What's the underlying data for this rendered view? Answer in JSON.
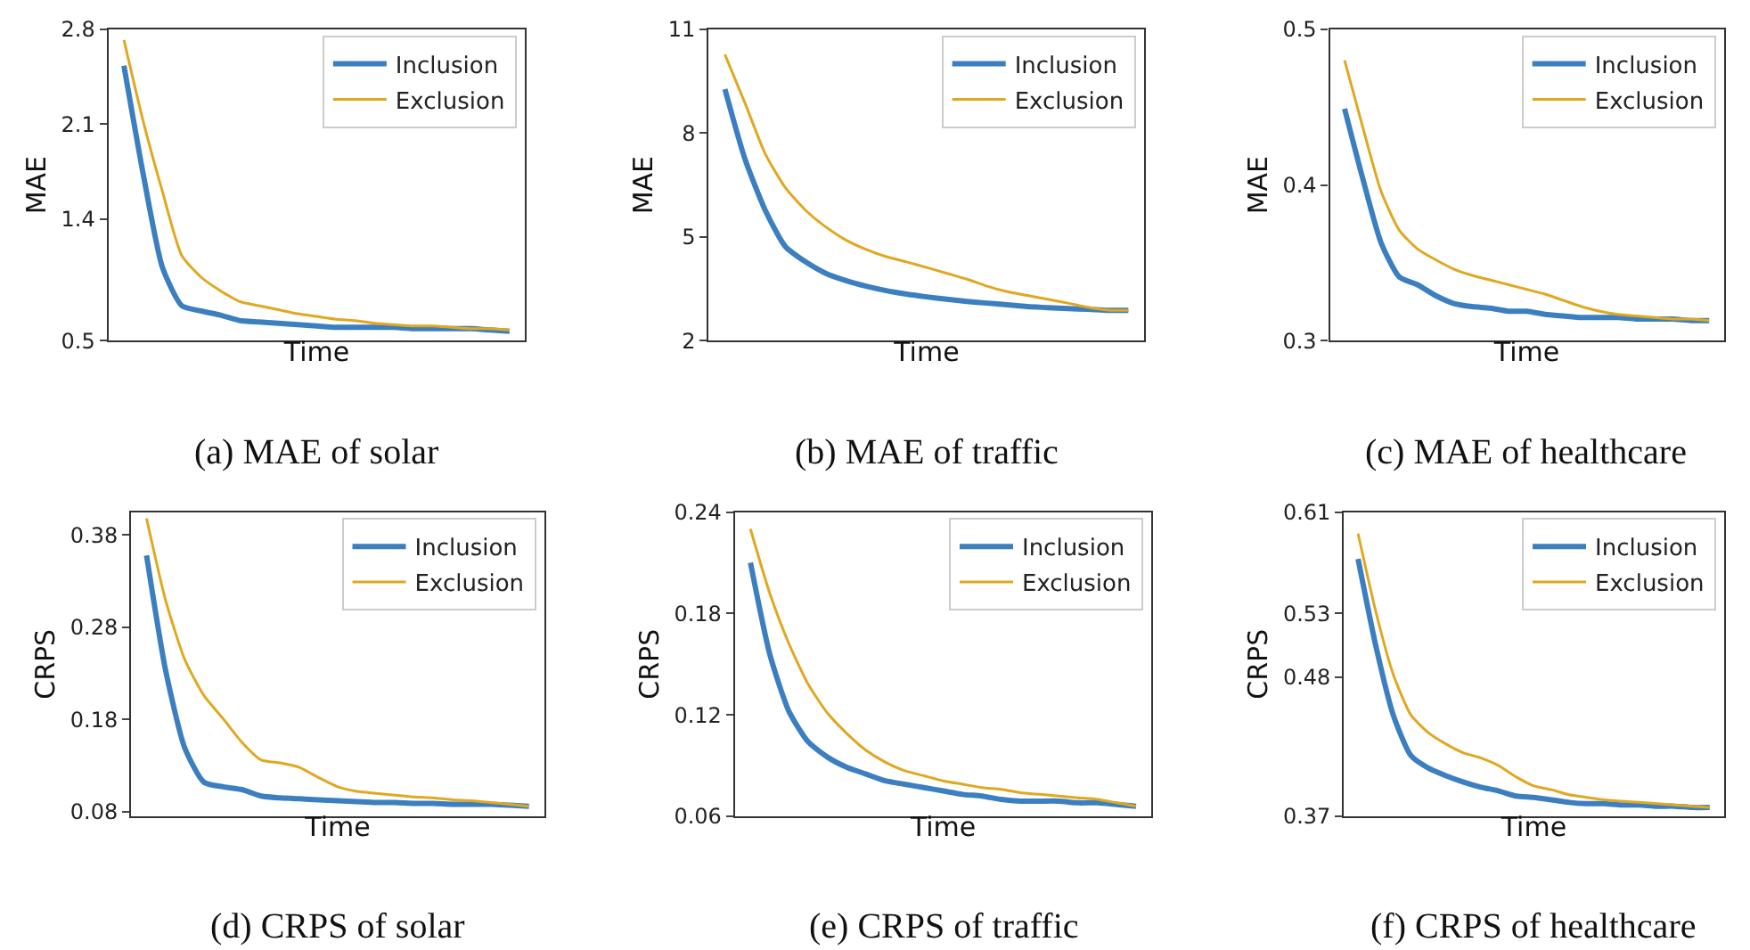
{
  "chart_data": [
    {
      "type": "line",
      "title": "(a) MAE of solar",
      "xlabel": "Time",
      "ylabel": "MAE",
      "categories": [
        null,
        null,
        null,
        null,
        null,
        null,
        null,
        null,
        null,
        null,
        null,
        null,
        null,
        null,
        null,
        null,
        null,
        null,
        null,
        null,
        null
      ],
      "ylim": [
        0.5,
        2.8
      ],
      "yticks": [
        0.5,
        1.4,
        2.1,
        2.8
      ],
      "tick_labels": "y",
      "legend": "top right",
      "series": [
        {
          "name": "Inclusion",
          "color": "#3b7fc0",
          "values": [
            2.53,
            1.73,
            1.04,
            0.76,
            0.72,
            0.69,
            0.65,
            0.64,
            0.63,
            0.62,
            0.61,
            0.6,
            0.6,
            0.6,
            0.6,
            0.59,
            0.59,
            0.59,
            0.59,
            0.58,
            0.57
          ]
        },
        {
          "name": "Exclusion",
          "color": "#e0a820",
          "values": [
            2.72,
            2.12,
            1.6,
            1.13,
            0.97,
            0.87,
            0.79,
            0.76,
            0.73,
            0.7,
            0.68,
            0.66,
            0.65,
            0.63,
            0.62,
            0.61,
            0.61,
            0.6,
            0.59,
            0.59,
            0.58
          ]
        }
      ]
    },
    {
      "type": "line",
      "title": "(b) MAE of traffic",
      "xlabel": "Time",
      "ylabel": "MAE",
      "categories": [
        null,
        null,
        null,
        null,
        null,
        null,
        null,
        null,
        null,
        null,
        null,
        null,
        null,
        null,
        null,
        null,
        null,
        null,
        null,
        null,
        null
      ],
      "ylim": [
        2,
        11
      ],
      "yticks": [
        2,
        5,
        8,
        11
      ],
      "tick_labels": "y",
      "legend": "top right",
      "series": [
        {
          "name": "Inclusion",
          "color": "#3b7fc0",
          "values": [
            9.27,
            7.24,
            5.77,
            4.72,
            4.28,
            3.95,
            3.74,
            3.58,
            3.45,
            3.35,
            3.27,
            3.2,
            3.14,
            3.09,
            3.04,
            2.99,
            2.96,
            2.93,
            2.91,
            2.88,
            2.88
          ]
        },
        {
          "name": "Exclusion",
          "color": "#e0a820",
          "values": [
            10.27,
            8.86,
            7.4,
            6.42,
            5.77,
            5.29,
            4.91,
            4.64,
            4.43,
            4.28,
            4.12,
            3.95,
            3.78,
            3.58,
            3.42,
            3.31,
            3.2,
            3.09,
            2.97,
            2.89,
            2.88
          ]
        }
      ]
    },
    {
      "type": "line",
      "title": "(c) MAE of healthcare",
      "xlabel": "Time",
      "ylabel": "MAE",
      "categories": [
        null,
        null,
        null,
        null,
        null,
        null,
        null,
        null,
        null,
        null,
        null,
        null,
        null,
        null,
        null,
        null,
        null,
        null,
        null,
        null,
        null
      ],
      "ylim": [
        0.3,
        0.5
      ],
      "yticks": [
        0.3,
        0.4,
        0.5
      ],
      "tick_labels": "y",
      "legend": "top right",
      "series": [
        {
          "name": "Inclusion",
          "color": "#3b7fc0",
          "values": [
            0.449,
            0.404,
            0.363,
            0.341,
            0.336,
            0.329,
            0.324,
            0.322,
            0.321,
            0.319,
            0.319,
            0.317,
            0.316,
            0.315,
            0.315,
            0.315,
            0.314,
            0.314,
            0.314,
            0.313,
            0.313
          ]
        },
        {
          "name": "Exclusion",
          "color": "#e0a820",
          "values": [
            0.48,
            0.437,
            0.396,
            0.371,
            0.359,
            0.352,
            0.346,
            0.342,
            0.339,
            0.336,
            0.333,
            0.33,
            0.326,
            0.322,
            0.319,
            0.317,
            0.316,
            0.315,
            0.314,
            0.314,
            0.313
          ]
        }
      ]
    },
    {
      "type": "line",
      "title": "(d) CRPS of solar",
      "xlabel": "Time",
      "ylabel": "CRPS",
      "categories": [
        null,
        null,
        null,
        null,
        null,
        null,
        null,
        null,
        null,
        null,
        null,
        null,
        null,
        null,
        null,
        null,
        null,
        null,
        null,
        null,
        null
      ],
      "ylim": [
        0.075,
        0.405
      ],
      "yticks": [
        0.08,
        0.18,
        0.28,
        0.38
      ],
      "tick_labels": "y",
      "legend": "top right",
      "series": [
        {
          "name": "Inclusion",
          "color": "#3b7fc0",
          "values": [
            0.358,
            0.233,
            0.149,
            0.112,
            0.107,
            0.104,
            0.097,
            0.095,
            0.094,
            0.093,
            0.092,
            0.091,
            0.09,
            0.09,
            0.089,
            0.089,
            0.088,
            0.088,
            0.088,
            0.087,
            0.086
          ]
        },
        {
          "name": "Exclusion",
          "color": "#e0a820",
          "values": [
            0.398,
            0.309,
            0.245,
            0.206,
            0.181,
            0.155,
            0.136,
            0.133,
            0.128,
            0.117,
            0.107,
            0.102,
            0.1,
            0.098,
            0.096,
            0.095,
            0.093,
            0.092,
            0.09,
            0.088,
            0.086
          ]
        }
      ]
    },
    {
      "type": "line",
      "title": "(e) CRPS of traffic",
      "xlabel": "Time",
      "ylabel": "CRPS",
      "categories": [
        null,
        null,
        null,
        null,
        null,
        null,
        null,
        null,
        null,
        null,
        null,
        null,
        null,
        null,
        null,
        null,
        null,
        null,
        null,
        null,
        null
      ],
      "ylim": [
        0.06,
        0.24
      ],
      "yticks": [
        0.06,
        0.12,
        0.18,
        0.24
      ],
      "tick_labels": "y",
      "legend": "top right",
      "series": [
        {
          "name": "Inclusion",
          "color": "#3b7fc0",
          "values": [
            0.21,
            0.156,
            0.122,
            0.104,
            0.095,
            0.089,
            0.085,
            0.081,
            0.079,
            0.077,
            0.075,
            0.073,
            0.072,
            0.07,
            0.069,
            0.069,
            0.069,
            0.068,
            0.068,
            0.067,
            0.066
          ]
        },
        {
          "name": "Exclusion",
          "color": "#e0a820",
          "values": [
            0.23,
            0.192,
            0.162,
            0.138,
            0.121,
            0.109,
            0.099,
            0.092,
            0.087,
            0.084,
            0.081,
            0.079,
            0.077,
            0.076,
            0.074,
            0.073,
            0.072,
            0.071,
            0.07,
            0.068,
            0.066
          ]
        }
      ]
    },
    {
      "type": "line",
      "title": "(f) CRPS of healthcare",
      "xlabel": "Time",
      "ylabel": "CRPS",
      "categories": [
        null,
        null,
        null,
        null,
        null,
        null,
        null,
        null,
        null,
        null,
        null,
        null,
        null,
        null,
        null,
        null,
        null,
        null,
        null,
        null,
        null
      ],
      "ylim": [
        0.37,
        0.61
      ],
      "yticks": [
        0.37,
        0.48,
        0.53,
        0.61
      ],
      "tick_labels": "y",
      "legend": "top right",
      "series": [
        {
          "name": "Inclusion",
          "color": "#3b7fc0",
          "values": [
            0.573,
            0.505,
            0.45,
            0.418,
            0.408,
            0.402,
            0.397,
            0.393,
            0.39,
            0.386,
            0.385,
            0.383,
            0.381,
            0.38,
            0.38,
            0.379,
            0.379,
            0.378,
            0.378,
            0.377,
            0.377
          ]
        },
        {
          "name": "Exclusion",
          "color": "#e0a820",
          "values": [
            0.593,
            0.532,
            0.482,
            0.45,
            0.436,
            0.427,
            0.42,
            0.416,
            0.41,
            0.401,
            0.394,
            0.391,
            0.387,
            0.385,
            0.383,
            0.382,
            0.381,
            0.38,
            0.379,
            0.378,
            0.377
          ]
        }
      ]
    }
  ]
}
